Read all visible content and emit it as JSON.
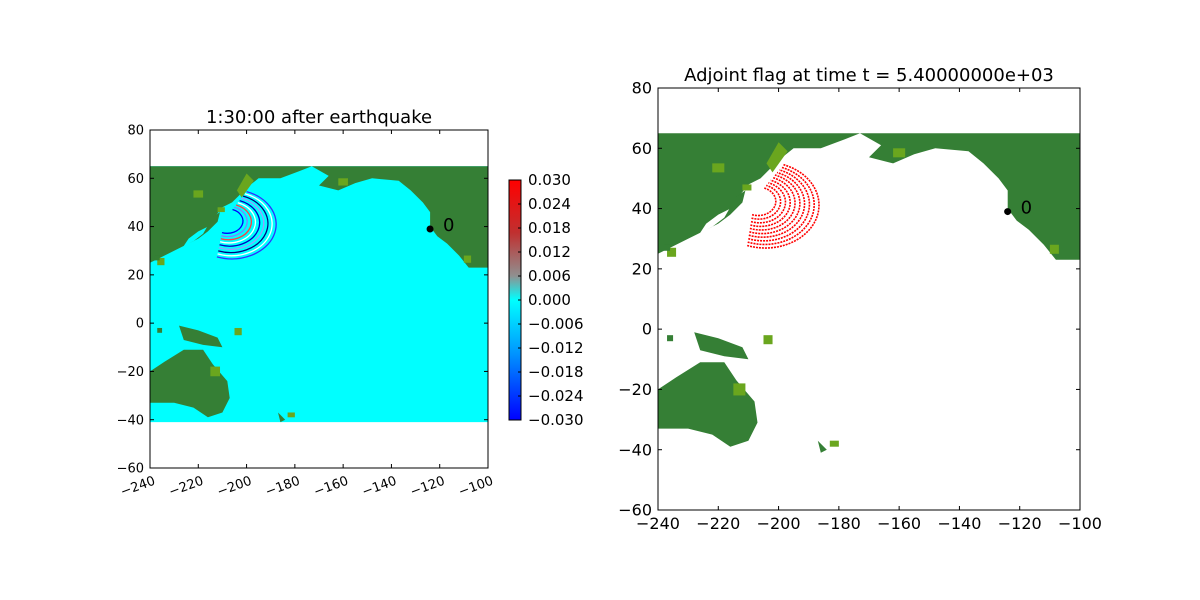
{
  "colors": {
    "land_dark": "#357f35",
    "land_light": "#6aa61e",
    "ocean": "#00ffff",
    "flag": "#ff0000",
    "gauge": "#000000"
  },
  "chart_data": [
    {
      "type": "heatmap",
      "title": "1:30:00 after earthquake",
      "xlim": [
        -240,
        -100
      ],
      "ylim": [
        -60,
        80
      ],
      "xticks": [
        "−240",
        "−220",
        "−200",
        "−180",
        "−160",
        "−140",
        "−120",
        "−100"
      ],
      "yticks": [
        "80",
        "60",
        "40",
        "20",
        "0",
        "−20",
        "−40",
        "−60"
      ],
      "xticks_rotated": true,
      "ocean_extent": {
        "lon": [
          -240,
          -100
        ],
        "lat": [
          -41,
          65
        ]
      },
      "gauge": {
        "label": "0",
        "lon": -124,
        "lat": 39
      },
      "colorbar": {
        "min": -0.03,
        "max": 0.03,
        "ticks": [
          "0.030",
          "0.024",
          "0.018",
          "0.012",
          "0.006",
          "0.000",
          "−0.006",
          "−0.012",
          "−0.018",
          "−0.024",
          "−0.030"
        ]
      }
    },
    {
      "type": "heatmap",
      "title": "Adjoint flag at time t = 5.40000000e+03",
      "xlim": [
        -240,
        -100
      ],
      "ylim": [
        -60,
        80
      ],
      "xticks": [
        "−240",
        "−220",
        "−200",
        "−180",
        "−160",
        "−140",
        "−120",
        "−100"
      ],
      "yticks": [
        "80",
        "60",
        "40",
        "20",
        "0",
        "−20",
        "−40",
        "−60"
      ],
      "xticks_rotated": false,
      "gauge": {
        "label": "0",
        "lon": -124,
        "lat": 39
      }
    }
  ]
}
